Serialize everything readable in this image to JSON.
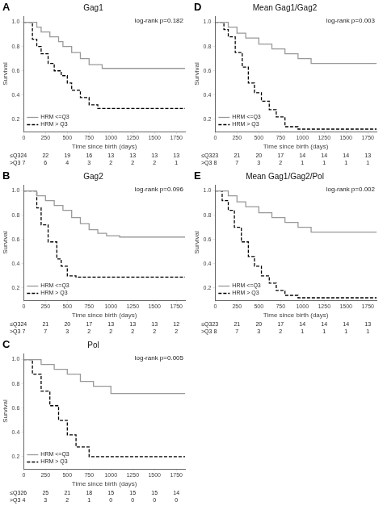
{
  "chart_data": [
    {
      "type": "step",
      "label": "A",
      "title": "Gag1",
      "annotations": [
        "log-rank p=0.182"
      ],
      "xlabel": "Time since birth (days)",
      "ylabel": "Survival",
      "xlim": [
        0,
        1850
      ],
      "ylim": [
        0.1,
        1.05
      ],
      "xticks": [
        0,
        250,
        500,
        750,
        1000,
        1250,
        1500,
        1750
      ],
      "yticks": [
        0.2,
        0.4,
        0.6,
        0.8,
        {
          "value": 1.0,
          "label": "1.0"
        }
      ],
      "grid": false,
      "legend": "lower left",
      "series": [
        {
          "name": "HRM <=Q3",
          "color": "#999999",
          "line_style": "solid",
          "x": [
            0,
            150,
            200,
            300,
            400,
            450,
            550,
            650,
            750,
            900,
            1750
          ],
          "values": [
            1.0,
            0.96,
            0.92,
            0.88,
            0.84,
            0.8,
            0.75,
            0.7,
            0.65,
            0.62,
            0.62
          ],
          "at_risk_label": "≤Q3",
          "at_risk": [
            24,
            22,
            19,
            16,
            13,
            13,
            13,
            13
          ]
        },
        {
          "name": "HRM > Q3",
          "color": "#000000",
          "line_style": "dashed",
          "x": [
            0,
            100,
            150,
            200,
            280,
            350,
            430,
            500,
            550,
            650,
            750,
            850,
            950,
            1750
          ],
          "values": [
            1.0,
            0.86,
            0.8,
            0.74,
            0.66,
            0.6,
            0.56,
            0.5,
            0.44,
            0.38,
            0.32,
            0.29,
            0.29,
            0.29
          ],
          "at_risk_label": ">Q3",
          "at_risk": [
            7,
            6,
            4,
            3,
            2,
            2,
            2,
            1
          ]
        }
      ]
    },
    {
      "type": "step",
      "label": "B",
      "title": "Gag2",
      "annotations": [
        "log-rank p=0.096"
      ],
      "xlabel": "Time since birth (days)",
      "ylabel": "Survival",
      "xlim": [
        0,
        1850
      ],
      "ylim": [
        0.1,
        1.05
      ],
      "xticks": [
        0,
        250,
        500,
        750,
        1000,
        1250,
        1500,
        1750
      ],
      "yticks": [
        0.2,
        0.4,
        0.6,
        0.8,
        {
          "value": 1.0,
          "label": "1.0"
        }
      ],
      "grid": false,
      "legend": "lower left",
      "series": [
        {
          "name": "HRM <=Q3",
          "color": "#999999",
          "line_style": "solid",
          "x": [
            0,
            150,
            250,
            350,
            450,
            550,
            650,
            750,
            850,
            950,
            1100,
            1750
          ],
          "values": [
            1.0,
            0.96,
            0.92,
            0.88,
            0.84,
            0.78,
            0.73,
            0.68,
            0.65,
            0.63,
            0.62,
            0.62
          ],
          "at_risk_label": "≤Q3",
          "at_risk": [
            24,
            21,
            20,
            17,
            13,
            13,
            13,
            12
          ]
        },
        {
          "name": "HRM > Q3",
          "color": "#000000",
          "line_style": "dashed",
          "x": [
            0,
            100,
            150,
            200,
            280,
            380,
            430,
            500,
            600,
            700,
            750,
            1750
          ],
          "values": [
            1.0,
            1.0,
            0.86,
            0.72,
            0.58,
            0.44,
            0.38,
            0.3,
            0.29,
            0.29,
            0.29,
            0.29
          ],
          "at_risk_label": ">Q3",
          "at_risk": [
            7,
            7,
            3,
            2,
            2,
            2,
            2,
            2
          ]
        }
      ]
    },
    {
      "type": "step",
      "label": "C",
      "title": "Pol",
      "annotations": [
        "log-rank p=0.005"
      ],
      "xlabel": "Time since birth (days)",
      "ylabel": "Survival",
      "xlim": [
        0,
        1850
      ],
      "ylim": [
        0.1,
        1.05
      ],
      "xticks": [
        0,
        250,
        500,
        750,
        1000,
        1250,
        1500,
        1750
      ],
      "yticks": [
        0.2,
        0.4,
        0.6,
        0.8,
        {
          "value": 1.0,
          "label": "1.0"
        }
      ],
      "grid": false,
      "legend": "lower left",
      "series": [
        {
          "name": "HRM <=Q3",
          "color": "#999999",
          "line_style": "solid",
          "x": [
            0,
            200,
            350,
            500,
            650,
            800,
            1000,
            1750
          ],
          "values": [
            1.0,
            0.96,
            0.92,
            0.88,
            0.82,
            0.78,
            0.72,
            0.72
          ],
          "at_risk_label": "≤Q3",
          "at_risk": [
            26,
            25,
            21,
            18,
            15,
            15,
            15,
            14
          ]
        },
        {
          "name": "HRM > Q3",
          "color": "#000000",
          "line_style": "dashed",
          "x": [
            0,
            100,
            200,
            300,
            400,
            500,
            600,
            750,
            1750
          ],
          "values": [
            1.0,
            0.88,
            0.74,
            0.62,
            0.5,
            0.38,
            0.28,
            0.2,
            0.2
          ],
          "at_risk_label": ">Q3",
          "at_risk": [
            4,
            3,
            2,
            1,
            0,
            0,
            0,
            0
          ]
        }
      ]
    },
    {
      "type": "step",
      "label": "D",
      "title": "Mean Gag1/Gag2",
      "annotations": [
        "log-rank p=0.003"
      ],
      "xlabel": "Time since birth (days)",
      "ylabel": "Survival",
      "xlim": [
        0,
        1850
      ],
      "ylim": [
        0.1,
        1.05
      ],
      "xticks": [
        0,
        250,
        500,
        750,
        1000,
        1250,
        1500,
        1750
      ],
      "yticks": [
        0.2,
        0.4,
        0.6,
        0.8,
        {
          "value": 1.0,
          "label": "1.0"
        }
      ],
      "grid": false,
      "legend": "lower left",
      "series": [
        {
          "name": "HRM <=Q3",
          "color": "#999999",
          "line_style": "solid",
          "x": [
            0,
            150,
            250,
            350,
            500,
            650,
            800,
            950,
            1100,
            1750
          ],
          "values": [
            1.0,
            0.96,
            0.91,
            0.87,
            0.82,
            0.78,
            0.74,
            0.7,
            0.66,
            0.66
          ],
          "at_risk_label": "≤Q3",
          "at_risk": [
            23,
            21,
            20,
            17,
            14,
            14,
            14,
            13
          ]
        },
        {
          "name": "HRM > Q3",
          "color": "#000000",
          "line_style": "dashed",
          "x": [
            0,
            100,
            150,
            230,
            310,
            380,
            450,
            530,
            620,
            700,
            800,
            950,
            1750
          ],
          "values": [
            1.0,
            0.94,
            0.88,
            0.75,
            0.63,
            0.5,
            0.42,
            0.35,
            0.28,
            0.22,
            0.14,
            0.12,
            0.12
          ],
          "at_risk_label": ">Q3",
          "at_risk": [
            8,
            7,
            3,
            2,
            1,
            1,
            1,
            1
          ]
        }
      ]
    },
    {
      "type": "step",
      "label": "E",
      "title": "Mean Gag1/Gag2/Pol",
      "annotations": [
        "log-rank p=0.002"
      ],
      "xlabel": "Time since birth (days)",
      "ylabel": "Survival",
      "xlim": [
        0,
        1850
      ],
      "ylim": [
        0.1,
        1.05
      ],
      "xticks": [
        0,
        250,
        500,
        750,
        1000,
        1250,
        1500,
        1750
      ],
      "yticks": [
        0.2,
        0.4,
        0.6,
        0.8,
        {
          "value": 1.0,
          "label": "1.0"
        }
      ],
      "grid": false,
      "legend": "lower left",
      "series": [
        {
          "name": "HRM <=Q3",
          "color": "#999999",
          "line_style": "solid",
          "x": [
            0,
            150,
            250,
            350,
            500,
            650,
            800,
            950,
            1100,
            1750
          ],
          "values": [
            1.0,
            0.96,
            0.91,
            0.87,
            0.82,
            0.78,
            0.74,
            0.7,
            0.66,
            0.66
          ],
          "at_risk_label": "≤Q3",
          "at_risk": [
            23,
            21,
            20,
            17,
            14,
            14,
            14,
            13
          ]
        },
        {
          "name": "HRM > Q3",
          "color": "#000000",
          "line_style": "dashed",
          "x": [
            0,
            80,
            150,
            220,
            300,
            380,
            450,
            530,
            620,
            700,
            800,
            950,
            1750
          ],
          "values": [
            1.0,
            0.92,
            0.84,
            0.7,
            0.58,
            0.46,
            0.38,
            0.3,
            0.24,
            0.18,
            0.14,
            0.12,
            0.12
          ],
          "at_risk_label": ">Q3",
          "at_risk": [
            8,
            7,
            3,
            2,
            1,
            1,
            1,
            1
          ]
        }
      ]
    }
  ]
}
